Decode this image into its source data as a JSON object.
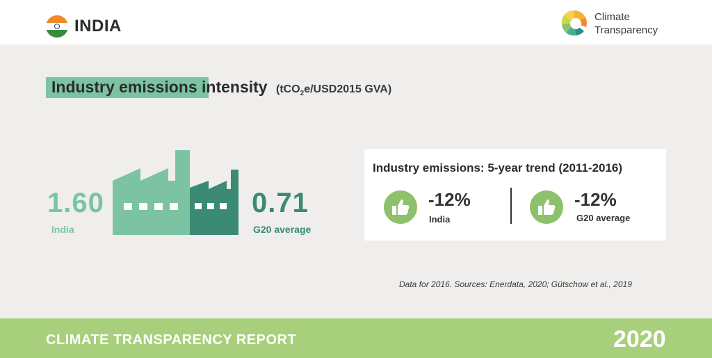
{
  "header": {
    "country": "INDIA",
    "brand_line1": "Climate",
    "brand_line2": "Transparency"
  },
  "title": {
    "highlighted": "Industry emissions",
    "rest": " intensity",
    "unit_prefix": "(tCO",
    "unit_sub": "2",
    "unit_suffix": "e/USD2015 GVA)"
  },
  "india": {
    "value": "1.60",
    "label": "India"
  },
  "g20": {
    "value": "0.71",
    "label": "G20 average"
  },
  "trend": {
    "title": "Industry emissions: 5-year trend (2011-2016)",
    "india_pct": "-12%",
    "india_label": "India",
    "g20_pct": "-12%",
    "g20_label": "G20 average"
  },
  "source": "Data for 2016. Sources: Enerdata, 2020; Gütschow et al., 2019",
  "footer": {
    "label": "CLIMATE TRANSPARENCY REPORT",
    "year": "2020"
  },
  "colors": {
    "india_green": "#78c5a6",
    "g20_green": "#3a8a74",
    "thumb_green": "#8dc16b",
    "footer_green": "#a8cf7b",
    "panel_grey": "#efeeec"
  },
  "icons": [
    "india-flag-icon",
    "climate-transparency-logo",
    "factory-icon",
    "thumbs-up-icon"
  ]
}
